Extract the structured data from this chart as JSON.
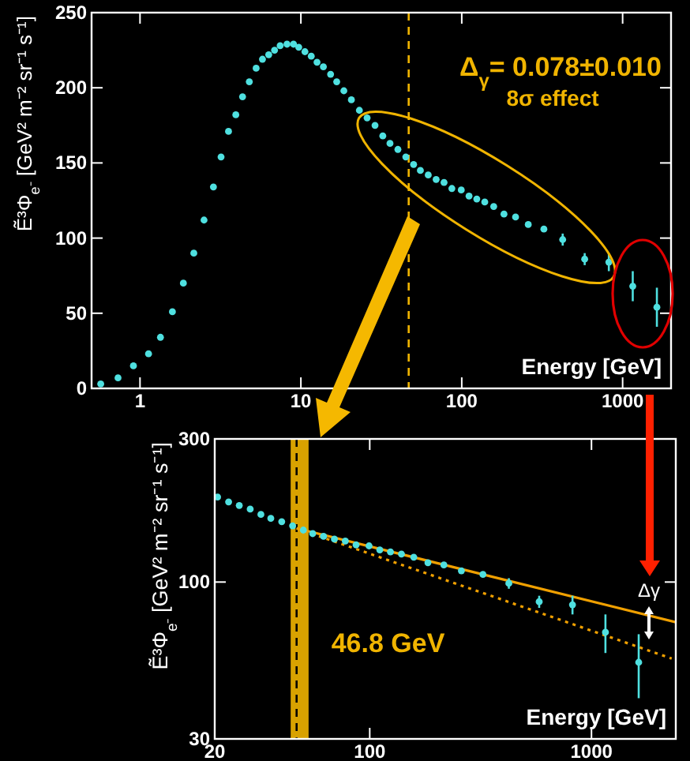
{
  "chart_data": [
    {
      "type": "scatter",
      "xlabel": "Energy [GeV]",
      "ylabel": "Ẽ³Φ$_{e⁻}$ [GeV² m⁻² sr⁻¹ s⁻¹]",
      "xlim": [
        0.5,
        2000
      ],
      "ylim": [
        0,
        250
      ],
      "xticks": [
        1,
        10,
        100,
        1000
      ],
      "yticks": [
        0,
        50,
        100,
        150,
        200,
        250
      ],
      "log": "x",
      "grid": false,
      "marker": "circle",
      "annotations": [
        "Δ$_{γ}$= 0.078±0.010",
        "8σ effect"
      ],
      "ref_lines": [
        {
          "axis": "x",
          "value": 46.8,
          "color": "#f0b400",
          "line_style": "dashed"
        }
      ],
      "series": [
        {
          "color": "#4fe0e0",
          "x": [
            0.57,
            0.73,
            0.91,
            1.13,
            1.34,
            1.59,
            1.86,
            2.16,
            2.5,
            2.86,
            3.19,
            3.55,
            3.94,
            4.34,
            4.78,
            5.27,
            5.77,
            6.31,
            6.86,
            7.43,
            8.2,
            9.0,
            9.7,
            10.6,
            11.6,
            12.6,
            13.8,
            15.3,
            16.7,
            18.5,
            20.6,
            23.1,
            25.8,
            28.9,
            32.3,
            35.8,
            40.1,
            44.9,
            50.2,
            55.3,
            61.9,
            69.3,
            77.6,
            86.8,
            99.3,
            111,
            124,
            139,
            158,
            183,
            216,
            259,
            324,
            424,
            581,
            821,
            1156,
            1633
          ],
          "values": [
            3,
            7,
            15,
            23,
            34,
            51,
            70,
            90,
            112,
            134,
            154,
            171,
            182,
            194,
            204,
            213,
            219,
            222,
            225,
            228,
            229,
            229,
            227,
            224,
            221,
            217,
            214,
            209,
            204,
            198,
            192,
            185,
            180,
            175,
            168,
            163,
            159,
            154,
            149,
            145,
            142,
            139,
            137,
            133,
            132,
            128,
            126,
            124,
            121,
            116,
            114,
            109,
            106,
            99,
            86,
            84,
            68,
            54
          ],
          "errors": [
            null,
            null,
            null,
            null,
            null,
            null,
            null,
            null,
            null,
            null,
            null,
            null,
            null,
            null,
            null,
            null,
            null,
            null,
            null,
            null,
            null,
            null,
            null,
            null,
            null,
            null,
            null,
            null,
            null,
            null,
            null,
            null,
            null,
            null,
            null,
            null,
            null,
            null,
            null,
            null,
            null,
            null,
            null,
            null,
            null,
            null,
            null,
            null,
            null,
            null,
            null,
            null,
            null,
            4,
            4,
            6,
            10,
            13
          ]
        }
      ]
    },
    {
      "type": "scatter",
      "xlabel": "Energy [GeV]",
      "ylabel": "Ẽ³Φ$_{e⁻}$ [GeV² m⁻² sr⁻¹ s⁻¹]",
      "xlim": [
        20,
        2400
      ],
      "ylim": [
        30,
        300
      ],
      "xticks": [
        20,
        100,
        1000
      ],
      "yticks": [
        30,
        100,
        300
      ],
      "log": "xy",
      "grid": false,
      "marker": "circle",
      "annotations": [
        "Δγ"
      ],
      "bands": [
        {
          "axis": "x",
          "from": 44,
          "to": 53,
          "color": "#f0b400"
        }
      ],
      "ref_lines": [
        {
          "axis": "x",
          "value": 46.8,
          "label": "46.8 GeV",
          "color": "#000000",
          "line_style": "dashed"
        }
      ],
      "series": [
        {
          "color": "#4fe0e0",
          "x": [
            20.6,
            23.1,
            25.8,
            28.9,
            32.3,
            35.8,
            40.1,
            44.9,
            50.2,
            55.3,
            61.9,
            69.3,
            77.6,
            86.8,
            99.3,
            111,
            124,
            139,
            158,
            183,
            216,
            259,
            324,
            424,
            581,
            821,
            1156,
            1633
          ],
          "values": [
            192,
            185,
            180,
            175,
            168,
            163,
            159,
            154,
            149,
            145,
            142,
            139,
            137,
            133,
            132,
            128,
            126,
            124,
            121,
            116,
            114,
            109,
            106,
            99,
            86,
            84,
            68,
            54
          ],
          "errors": [
            null,
            null,
            null,
            null,
            null,
            null,
            null,
            null,
            null,
            null,
            null,
            null,
            null,
            null,
            null,
            null,
            null,
            null,
            null,
            null,
            null,
            null,
            null,
            4,
            4,
            6,
            10,
            13
          ]
        },
        {
          "type": "line",
          "marker": "none",
          "color": "#f0a000",
          "line_style": "solid",
          "x": [
            46.8,
            2400
          ],
          "values": [
            151,
            73.5
          ]
        },
        {
          "type": "line",
          "marker": "none",
          "color": "#f0a000",
          "line_style": "dotted",
          "x": [
            46.8,
            2300
          ],
          "values": [
            151,
            55.6
          ]
        }
      ]
    }
  ]
}
